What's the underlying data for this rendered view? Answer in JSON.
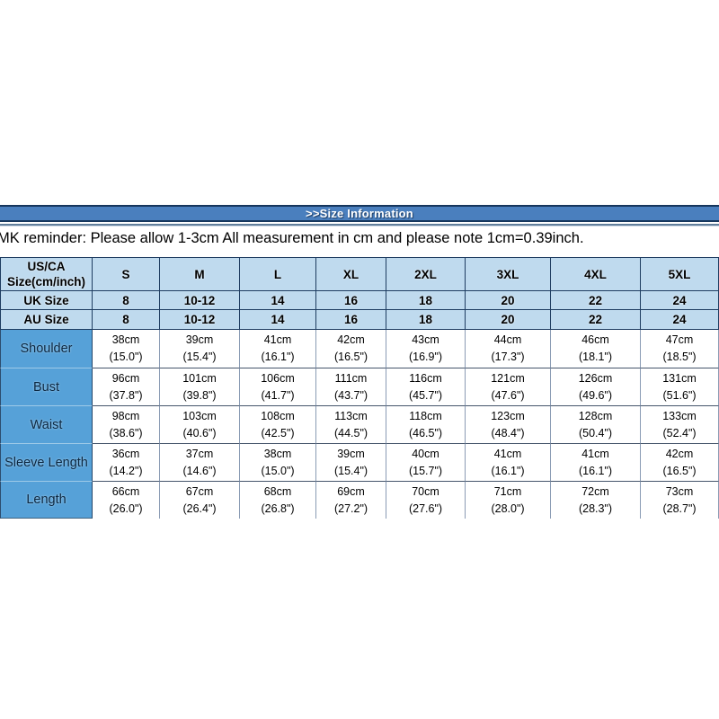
{
  "banner": {
    "label": ">>Size Information"
  },
  "reminder": {
    "text": "MK reminder: Please allow 1-3cm All measurement in cm and please note 1cm=0.39inch."
  },
  "size_chart": {
    "corner": {
      "line1": "US/CA",
      "line2": "Size(cm/inch)"
    },
    "size_columns": [
      "S",
      "M",
      "L",
      "XL",
      "2XL",
      "3XL",
      "4XL",
      "5XL"
    ],
    "region_size_rows": [
      {
        "label": "UK Size",
        "values": [
          "8",
          "10-12",
          "14",
          "16",
          "18",
          "20",
          "22",
          "24"
        ]
      },
      {
        "label": "AU Size",
        "values": [
          "8",
          "10-12",
          "14",
          "16",
          "18",
          "20",
          "22",
          "24"
        ]
      }
    ],
    "measurement_rows": [
      {
        "label": "Shoulder",
        "cells": [
          {
            "cm": "38cm",
            "inch": "(15.0\")"
          },
          {
            "cm": "39cm",
            "inch": "(15.4\")"
          },
          {
            "cm": "41cm",
            "inch": "(16.1\")"
          },
          {
            "cm": "42cm",
            "inch": "(16.5\")"
          },
          {
            "cm": "43cm",
            "inch": "(16.9\")"
          },
          {
            "cm": "44cm",
            "inch": "(17.3\")"
          },
          {
            "cm": "46cm",
            "inch": "(18.1\")"
          },
          {
            "cm": "47cm",
            "inch": "(18.5\")"
          }
        ]
      },
      {
        "label": "Bust",
        "cells": [
          {
            "cm": "96cm",
            "inch": "(37.8\")"
          },
          {
            "cm": "101cm",
            "inch": "(39.8\")"
          },
          {
            "cm": "106cm",
            "inch": "(41.7\")"
          },
          {
            "cm": "111cm",
            "inch": "(43.7\")"
          },
          {
            "cm": "116cm",
            "inch": "(45.7\")"
          },
          {
            "cm": "121cm",
            "inch": "(47.6\")"
          },
          {
            "cm": "126cm",
            "inch": "(49.6\")"
          },
          {
            "cm": "131cm",
            "inch": "(51.6\")"
          }
        ]
      },
      {
        "label": "Waist",
        "cells": [
          {
            "cm": "98cm",
            "inch": "(38.6\")"
          },
          {
            "cm": "103cm",
            "inch": "(40.6\")"
          },
          {
            "cm": "108cm",
            "inch": "(42.5\")"
          },
          {
            "cm": "113cm",
            "inch": "(44.5\")"
          },
          {
            "cm": "118cm",
            "inch": "(46.5\")"
          },
          {
            "cm": "123cm",
            "inch": "(48.4\")"
          },
          {
            "cm": "128cm",
            "inch": "(50.4\")"
          },
          {
            "cm": "133cm",
            "inch": "(52.4\")"
          }
        ]
      },
      {
        "label": "Sleeve Length",
        "cells": [
          {
            "cm": "36cm",
            "inch": "(14.2\")"
          },
          {
            "cm": "37cm",
            "inch": "(14.6\")"
          },
          {
            "cm": "38cm",
            "inch": "(15.0\")"
          },
          {
            "cm": "39cm",
            "inch": "(15.4\")"
          },
          {
            "cm": "40cm",
            "inch": "(15.7\")"
          },
          {
            "cm": "41cm",
            "inch": "(16.1\")"
          },
          {
            "cm": "41cm",
            "inch": "(16.1\")"
          },
          {
            "cm": "42cm",
            "inch": "(16.5\")"
          }
        ]
      },
      {
        "label": "Length",
        "cells": [
          {
            "cm": "66cm",
            "inch": "(26.0\")"
          },
          {
            "cm": "67cm",
            "inch": "(26.4\")"
          },
          {
            "cm": "68cm",
            "inch": "(26.8\")"
          },
          {
            "cm": "69cm",
            "inch": "(27.2\")"
          },
          {
            "cm": "70cm",
            "inch": "(27.6\")"
          },
          {
            "cm": "71cm",
            "inch": "(28.0\")"
          },
          {
            "cm": "72cm",
            "inch": "(28.3\")"
          },
          {
            "cm": "73cm",
            "inch": "(28.7\")"
          }
        ]
      }
    ]
  },
  "colors": {
    "banner_blue": "#4a7fbe",
    "banner_border_navy": "#16365c",
    "header_light_blue": "#bfdaee",
    "label_column_blue": "#56a1d8",
    "header_border_navy": "#1f3d61",
    "data_border_gray": "#45556b"
  }
}
